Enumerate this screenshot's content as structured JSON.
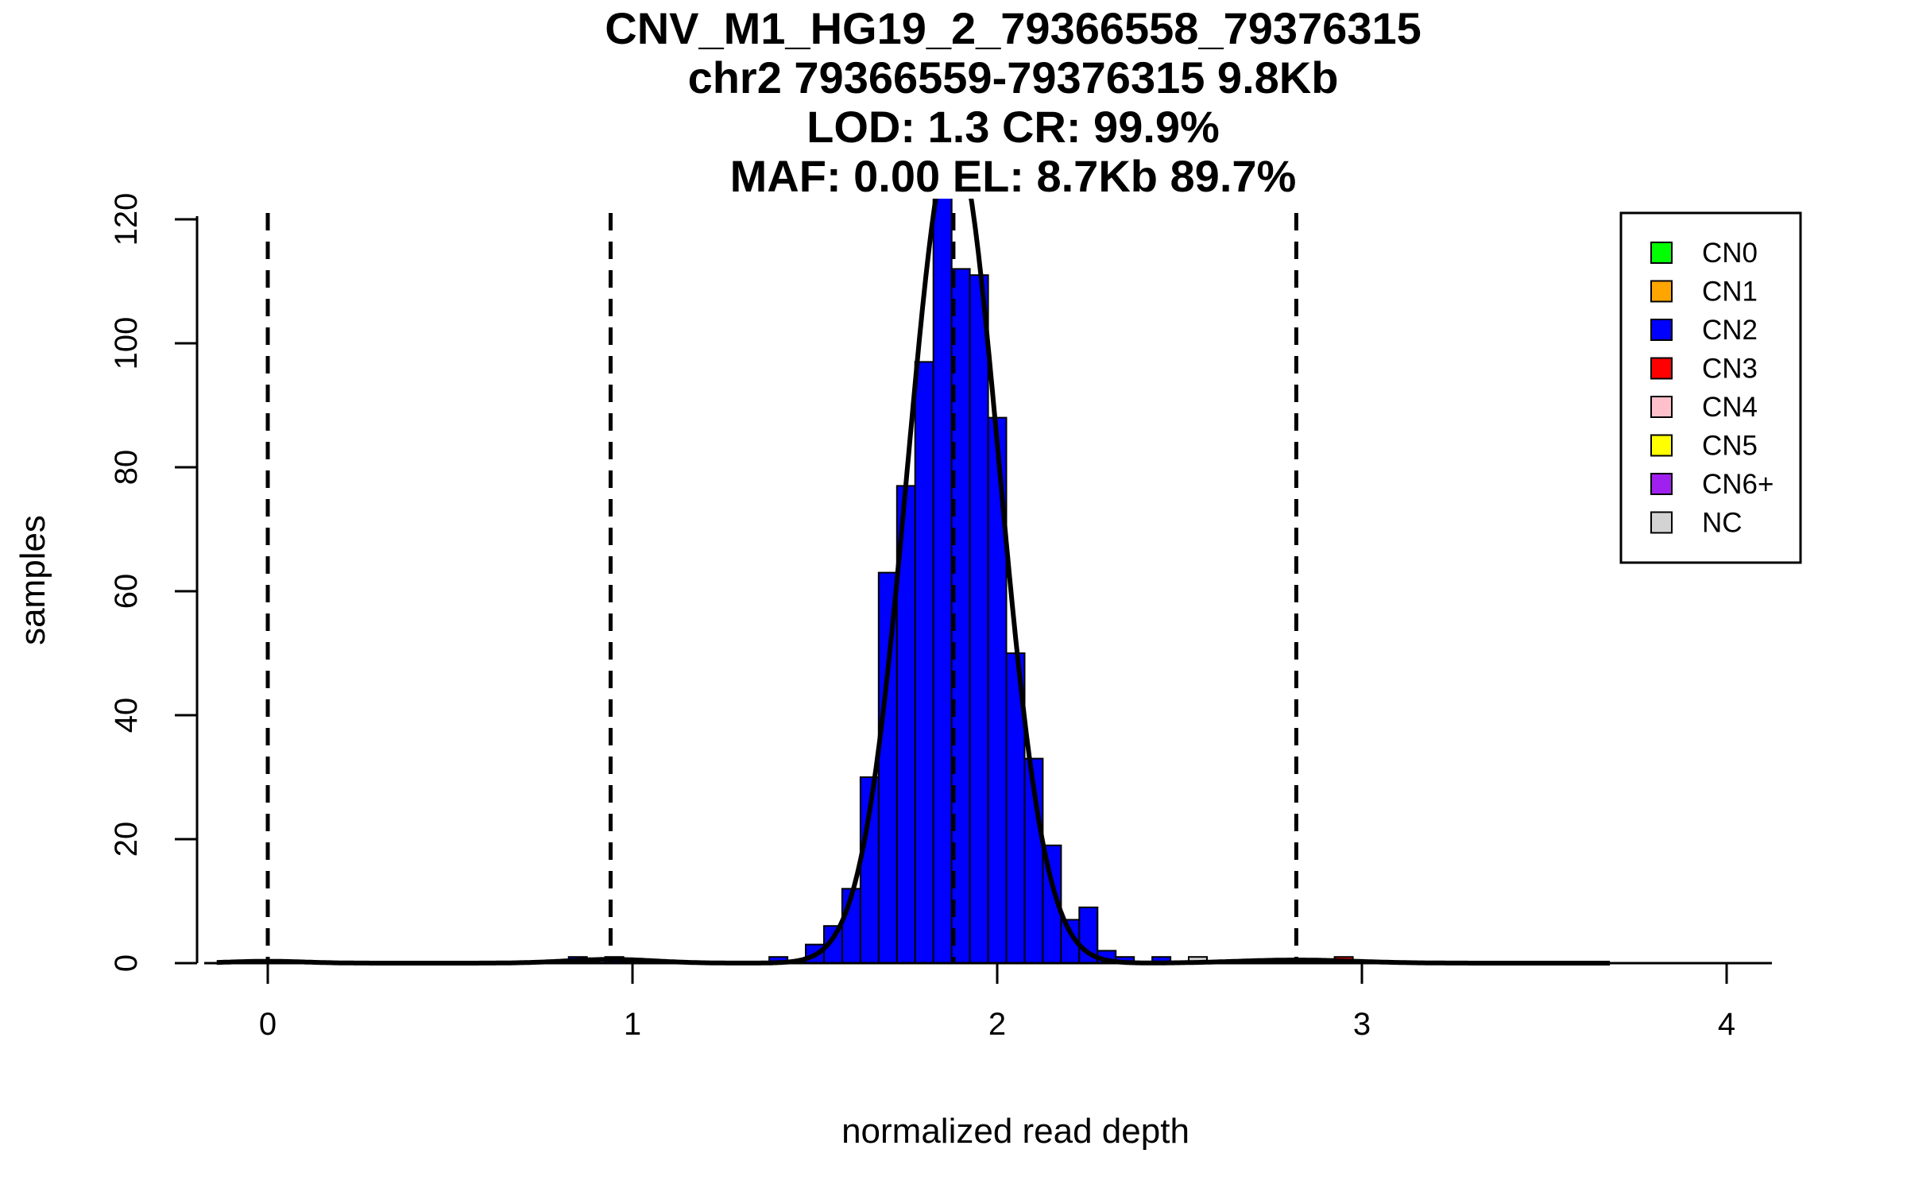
{
  "chart_data": {
    "type": "bar",
    "title_lines": [
      "CNV_M1_HG19_2_79366558_79376315",
      "chr2 79366559-79376315 9.8Kb",
      "LOD: 1.3 CR: 99.9%",
      "MAF: 0.00 EL: 8.7Kb 89.7%"
    ],
    "xlabel": "normalized read depth",
    "ylabel": "samples",
    "xlim": [
      -0.17,
      4.13
    ],
    "ylim": [
      0,
      120
    ],
    "x_ticks": [
      0,
      1,
      2,
      3,
      4
    ],
    "y_ticks": [
      0,
      20,
      40,
      60,
      80,
      100,
      120
    ],
    "bin_width": 0.05,
    "dashed_lines_x": [
      0,
      0.94,
      1.88,
      2.82
    ],
    "bins": [
      {
        "x": 0.85,
        "count": 1,
        "color": "#0000ff"
      },
      {
        "x": 0.95,
        "count": 1,
        "color": "#0000ff"
      },
      {
        "x": 1.4,
        "count": 1,
        "color": "#0000ff"
      },
      {
        "x": 1.45,
        "count": 0,
        "color": "#0000ff"
      },
      {
        "x": 1.5,
        "count": 3,
        "color": "#0000ff"
      },
      {
        "x": 1.55,
        "count": 6,
        "color": "#0000ff"
      },
      {
        "x": 1.6,
        "count": 12,
        "color": "#0000ff"
      },
      {
        "x": 1.65,
        "count": 30,
        "color": "#0000ff"
      },
      {
        "x": 1.7,
        "count": 63,
        "color": "#0000ff"
      },
      {
        "x": 1.75,
        "count": 77,
        "color": "#0000ff"
      },
      {
        "x": 1.8,
        "count": 97,
        "color": "#0000ff"
      },
      {
        "x": 1.85,
        "count": 124,
        "color": "#0000ff"
      },
      {
        "x": 1.9,
        "count": 112,
        "color": "#0000ff"
      },
      {
        "x": 1.95,
        "count": 111,
        "color": "#0000ff"
      },
      {
        "x": 2.0,
        "count": 88,
        "color": "#0000ff"
      },
      {
        "x": 2.05,
        "count": 50,
        "color": "#0000ff"
      },
      {
        "x": 2.1,
        "count": 33,
        "color": "#0000ff"
      },
      {
        "x": 2.15,
        "count": 19,
        "color": "#0000ff"
      },
      {
        "x": 2.2,
        "count": 7,
        "color": "#0000ff"
      },
      {
        "x": 2.25,
        "count": 9,
        "color": "#0000ff"
      },
      {
        "x": 2.3,
        "count": 2,
        "color": "#0000ff"
      },
      {
        "x": 2.35,
        "count": 1,
        "color": "#0000ff"
      },
      {
        "x": 2.45,
        "count": 1,
        "color": "#0000ff"
      },
      {
        "x": 2.55,
        "count": 1,
        "color": "#d3d3d3"
      },
      {
        "x": 2.95,
        "count": 1,
        "color": "#ff0000"
      }
    ],
    "density_curves": [
      {
        "center": 1.88,
        "sd": 0.125,
        "peak": 133
      },
      {
        "center": 0.94,
        "sd": 0.12,
        "peak": 0.6
      },
      {
        "center": 2.82,
        "sd": 0.16,
        "peak": 0.5
      },
      {
        "center": 0,
        "sd": 0.1,
        "peak": 0.3
      }
    ],
    "legend": {
      "position": "top-right",
      "entries": [
        {
          "label": "CN0",
          "color": "#00ff00"
        },
        {
          "label": "CN1",
          "color": "#ffa500"
        },
        {
          "label": "CN2",
          "color": "#0000ff"
        },
        {
          "label": "CN3",
          "color": "#ff0000"
        },
        {
          "label": "CN4",
          "color": "#ffc0cb"
        },
        {
          "label": "CN5",
          "color": "#ffff00"
        },
        {
          "label": "CN6+",
          "color": "#a020f0"
        },
        {
          "label": "NC",
          "color": "#d3d3d3"
        }
      ]
    }
  }
}
